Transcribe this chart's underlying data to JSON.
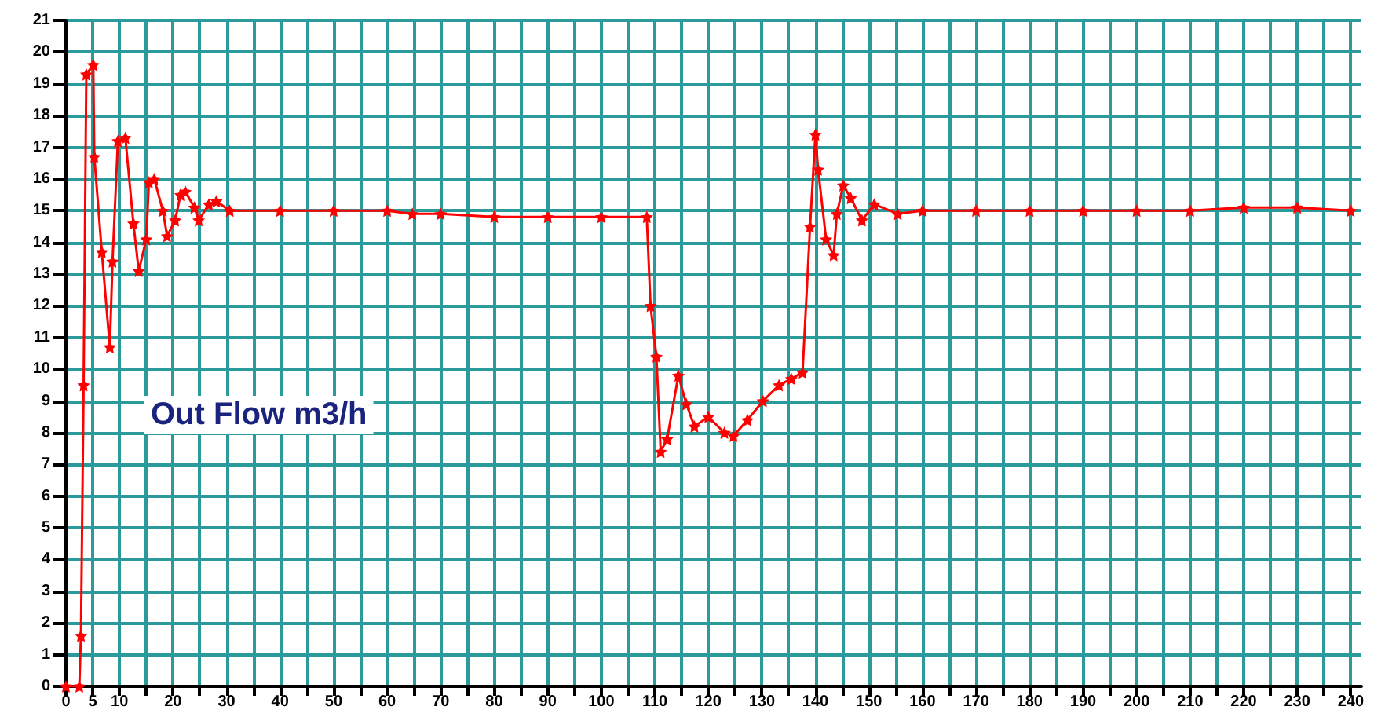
{
  "chart_data": {
    "type": "line",
    "title": "Out Flow m3/h",
    "x": [
      0,
      2.5,
      2.8,
      3.3,
      3.8,
      5.1,
      5.3,
      6.7,
      8.2,
      8.7,
      9.7,
      11.1,
      12.6,
      13.6,
      15,
      15.5,
      16.5,
      18.1,
      18.9,
      20.4,
      21.4,
      22.3,
      24,
      24.8,
      26.7,
      28.1,
      30.6,
      40,
      50,
      60,
      64.7,
      70,
      80,
      90,
      100,
      108.5,
      109.2,
      110.3,
      111.1,
      112.3,
      114.4,
      115.9,
      117.4,
      120,
      123,
      124.7,
      127.3,
      130.2,
      133.2,
      135.5,
      137.6,
      139,
      140,
      140.5,
      142,
      143.4,
      144,
      145.2,
      146.6,
      148.7,
      151,
      155.4,
      160,
      170,
      180,
      190,
      200,
      210,
      220,
      230,
      240
    ],
    "series": [
      {
        "color": "#ff0000",
        "values": [
          0,
          0,
          1.6,
          9.5,
          19.3,
          19.6,
          16.7,
          13.7,
          10.7,
          13.4,
          17.2,
          17.3,
          14.6,
          13.1,
          14.1,
          15.9,
          16.0,
          15.0,
          14.2,
          14.7,
          15.5,
          15.6,
          15.1,
          14.7,
          15.2,
          15.3,
          15.0,
          15.0,
          15.0,
          15.0,
          14.9,
          14.9,
          14.8,
          14.8,
          14.8,
          14.8,
          12.0,
          10.4,
          7.4,
          7.8,
          9.8,
          8.9,
          8.2,
          8.5,
          8.0,
          7.9,
          8.4,
          9.0,
          9.5,
          9.7,
          9.9,
          14.5,
          17.4,
          16.3,
          14.1,
          13.6,
          14.9,
          15.8,
          15.4,
          14.7,
          15.2,
          14.9,
          15.0,
          15.0,
          15.0,
          15.0,
          15.0,
          15.0,
          15.1,
          15.1,
          15.0
        ]
      }
    ],
    "xlim": [
      0,
      242
    ],
    "xticks": [
      0,
      5,
      10,
      {
        "value": 15,
        "label": null
      },
      20,
      {
        "value": 25,
        "label": null
      },
      30,
      {
        "value": 35,
        "label": null
      },
      40,
      {
        "value": 45,
        "label": null
      },
      50,
      {
        "value": 55,
        "label": null
      },
      60,
      {
        "value": 65,
        "label": null
      },
      70,
      {
        "value": 75,
        "label": null
      },
      80,
      {
        "value": 85,
        "label": null
      },
      90,
      {
        "value": 95,
        "label": null
      },
      100,
      {
        "value": 105,
        "label": null
      },
      110,
      {
        "value": 115,
        "label": null
      },
      120,
      {
        "value": 125,
        "label": null
      },
      130,
      {
        "value": 135,
        "label": null
      },
      140,
      {
        "value": 145,
        "label": null
      },
      150,
      {
        "value": 155,
        "label": null
      },
      160,
      {
        "value": 165,
        "label": null
      },
      170,
      {
        "value": 175,
        "label": null
      },
      180,
      {
        "value": 185,
        "label": null
      },
      190,
      {
        "value": 195,
        "label": null
      },
      200,
      {
        "value": 205,
        "label": null
      },
      210,
      {
        "value": 215,
        "label": null
      },
      220,
      {
        "value": 225,
        "label": null
      },
      230,
      {
        "value": 235,
        "label": null
      },
      240
    ],
    "ylim": [
      0,
      21
    ],
    "yticks": [
      0,
      1,
      2,
      3,
      4,
      5,
      6,
      7,
      8,
      9,
      10,
      11,
      12,
      13,
      14,
      15,
      16,
      17,
      18,
      19,
      20,
      21
    ],
    "grid": true,
    "marker": "star"
  }
}
